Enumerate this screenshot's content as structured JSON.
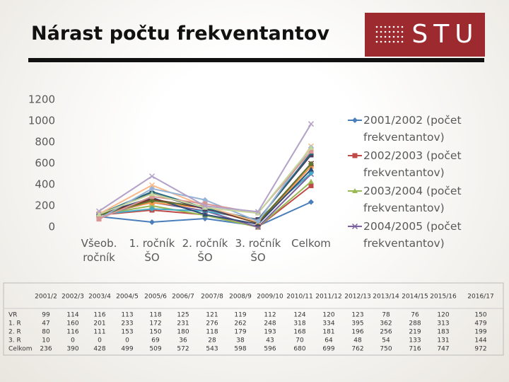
{
  "header": {
    "title": "Nárast počtu frekventantov",
    "logo": "STU"
  },
  "chart_data": {
    "type": "line",
    "categories": [
      "Všeob. ročník",
      "1. ročník ŠO",
      "2. ročník ŠO",
      "3. ročník ŠO",
      "Celkom"
    ],
    "ylim": [
      0,
      1200
    ],
    "yticks": [
      0,
      200,
      400,
      600,
      800,
      1000,
      1200
    ],
    "grid": false,
    "legend": "right",
    "series": [
      {
        "name": "2001/2002 (počet frekventantov)",
        "color": "#4a7ebb",
        "values": [
          99,
          47,
          80,
          10,
          236
        ]
      },
      {
        "name": "2002/2003 (počet frekventantov)",
        "color": "#be4b48",
        "values": [
          114,
          160,
          116,
          0,
          390
        ]
      },
      {
        "name": "2003/2004 (počet frekventantov)",
        "color": "#98b954",
        "values": [
          116,
          201,
          111,
          0,
          428
        ]
      },
      {
        "name": "2004/2005 (počet frekventantov)",
        "color": "#7d60a0",
        "values": [
          113,
          233,
          153,
          0,
          499
        ]
      },
      {
        "color": "#46aac5",
        "values": [
          118,
          172,
          150,
          69,
          509
        ]
      },
      {
        "color": "#f79646",
        "values": [
          125,
          231,
          180,
          36,
          572
        ]
      },
      {
        "color": "#2c4d75",
        "values": [
          121,
          276,
          118,
          28,
          543
        ]
      },
      {
        "color": "#772c2a",
        "values": [
          119,
          262,
          179,
          38,
          598
        ]
      },
      {
        "color": "#5f7530",
        "values": [
          112,
          248,
          193,
          43,
          596
        ]
      },
      {
        "color": "#4d3b62",
        "values": [
          124,
          318,
          168,
          70,
          680
        ]
      },
      {
        "color": "#276a7c",
        "values": [
          120,
          334,
          181,
          64,
          699
        ]
      },
      {
        "color": "#f9b988",
        "values": [
          123,
          395,
          196,
          48,
          762
        ]
      },
      {
        "color": "#95b3d7",
        "values": [
          78,
          362,
          256,
          54,
          750
        ]
      },
      {
        "color": "#d99694",
        "values": [
          76,
          288,
          219,
          133,
          716
        ]
      },
      {
        "color": "#c3d69b",
        "values": [
          120,
          313,
          183,
          131,
          747
        ]
      },
      {
        "color": "#b3a2c7",
        "values": [
          150,
          479,
          199,
          144,
          972
        ]
      }
    ]
  },
  "table": {
    "header": [
      "2001/2",
      "2002/3",
      "2003/4",
      "2004/5",
      "2005/6",
      "2006/7",
      "2007/8",
      "2008/9",
      "2009/10",
      "2010/11",
      "2011/12",
      "2012/13",
      "2013/14",
      "2014/15",
      "2015/16",
      "2016/17"
    ],
    "rows": [
      [
        "VR",
        99,
        114,
        116,
        113,
        118,
        125,
        121,
        119,
        112,
        124,
        120,
        123,
        78,
        76,
        120,
        150
      ],
      [
        "1. R",
        47,
        160,
        201,
        233,
        172,
        231,
        276,
        262,
        248,
        318,
        334,
        395,
        362,
        288,
        313,
        479
      ],
      [
        "2. R",
        80,
        116,
        111,
        153,
        150,
        180,
        118,
        179,
        193,
        168,
        181,
        196,
        256,
        219,
        183,
        199
      ],
      [
        "3. R",
        10,
        0,
        0,
        0,
        69,
        36,
        28,
        38,
        43,
        70,
        64,
        48,
        54,
        133,
        131,
        144
      ],
      [
        "Celkom",
        236,
        390,
        428,
        499,
        509,
        572,
        543,
        598,
        596,
        680,
        699,
        762,
        750,
        716,
        747,
        972
      ]
    ]
  }
}
